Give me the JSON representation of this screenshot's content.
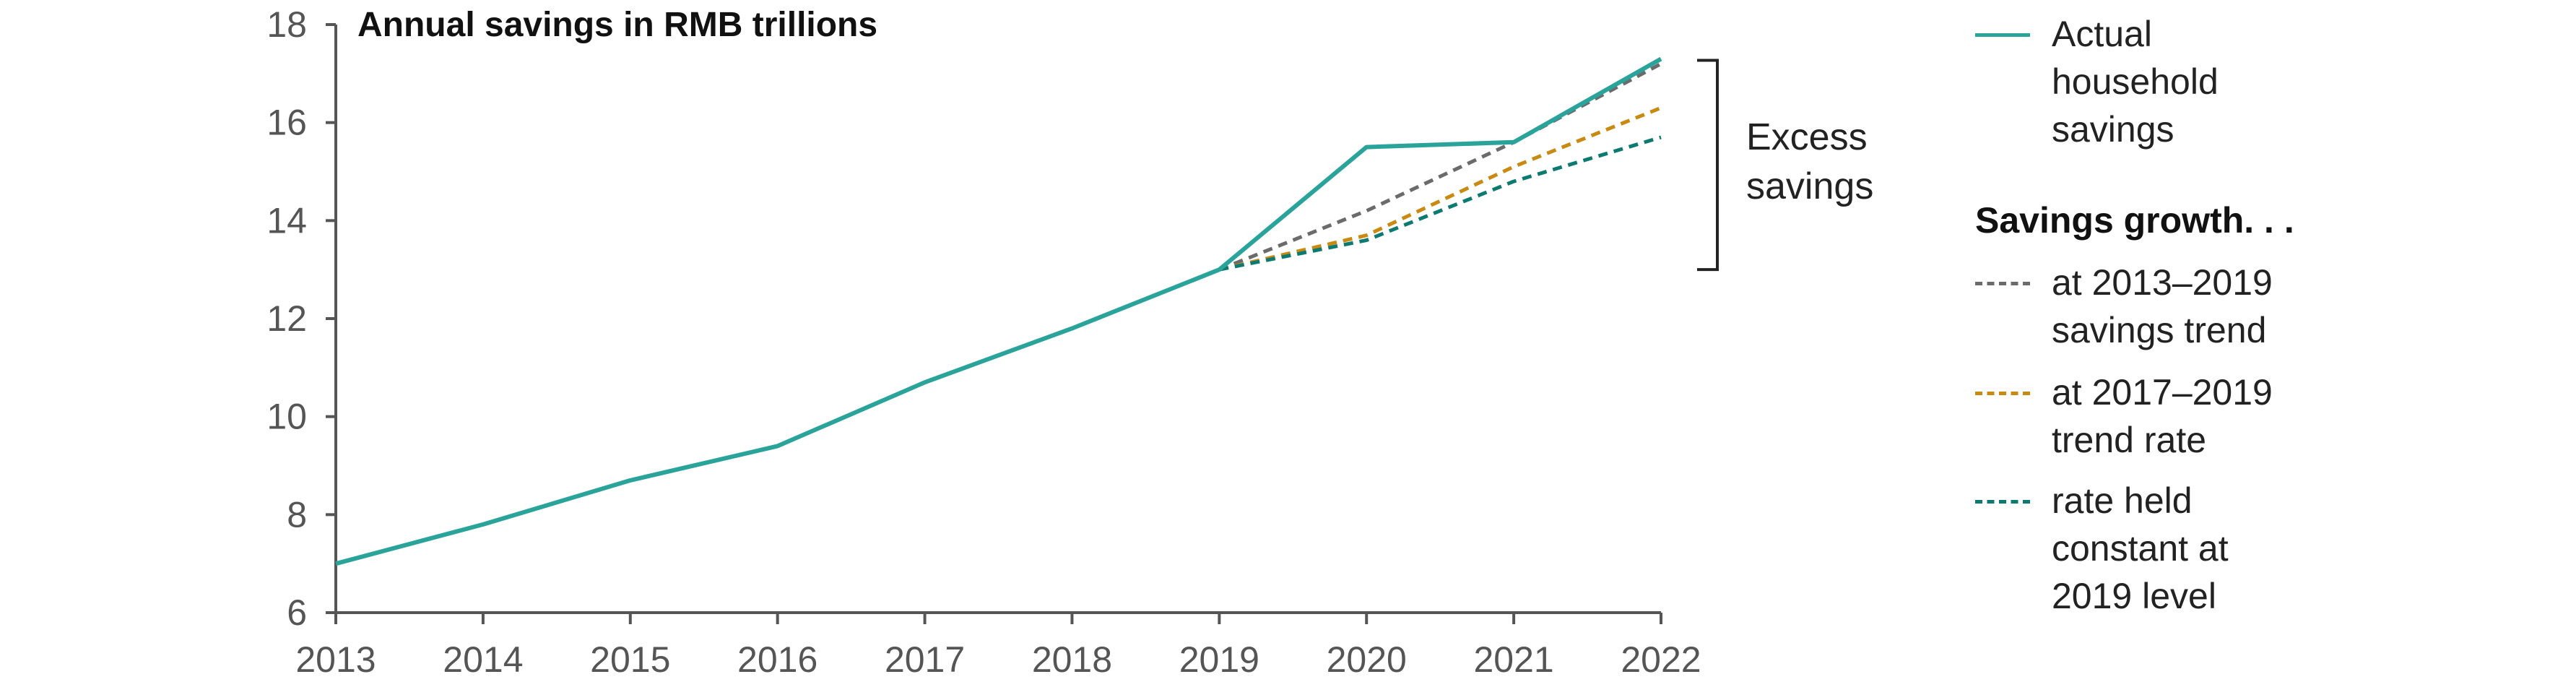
{
  "chart_data": {
    "type": "line",
    "title": "Annual savings in RMB trillions",
    "x": [
      "2013",
      "2014",
      "2015",
      "2016",
      "2017",
      "2018",
      "2019",
      "2020",
      "2021",
      "2022"
    ],
    "ylim": [
      6,
      18
    ],
    "yticks": [
      6,
      8,
      10,
      12,
      14,
      16,
      18
    ],
    "grid": false,
    "legend_position": "right",
    "series": [
      {
        "name": "Actual household savings",
        "color": "#2aa39b",
        "style": "solid",
        "x": [
          "2013",
          "2014",
          "2015",
          "2016",
          "2017",
          "2018",
          "2019",
          "2020",
          "2021",
          "2022"
        ],
        "values": [
          7.0,
          7.8,
          8.7,
          9.4,
          10.7,
          11.8,
          13.0,
          15.5,
          15.6,
          17.3
        ]
      },
      {
        "name": "at 2013–2019 savings trend",
        "color": "#6b6b6b",
        "style": "dashed",
        "x": [
          "2019",
          "2020",
          "2021",
          "2022"
        ],
        "values": [
          13.0,
          14.2,
          15.6,
          17.2
        ]
      },
      {
        "name": "at 2017–2019 trend rate",
        "color": "#c98a12",
        "style": "dashed",
        "x": [
          "2019",
          "2020",
          "2021",
          "2022"
        ],
        "values": [
          13.0,
          13.7,
          15.1,
          16.3
        ]
      },
      {
        "name": "rate held constant at 2019 level",
        "color": "#0d7a72",
        "style": "dashed",
        "x": [
          "2019",
          "2020",
          "2021",
          "2022"
        ],
        "values": [
          13.0,
          13.6,
          14.8,
          15.7
        ]
      }
    ],
    "annotation": {
      "text_lines": [
        "Excess",
        "savings"
      ],
      "range": [
        13.0,
        17.3
      ]
    },
    "legend": {
      "heading": "Savings growth. . .",
      "entries": [
        {
          "lines": [
            "Actual",
            "household",
            "savings"
          ],
          "color": "#2aa39b",
          "style": "solid"
        },
        {
          "lines": [
            "at 2013–2019",
            "savings trend"
          ],
          "color": "#6b6b6b",
          "style": "dashed"
        },
        {
          "lines": [
            "at 2017–2019",
            "trend rate"
          ],
          "color": "#c98a12",
          "style": "dashed"
        },
        {
          "lines": [
            "rate held",
            "constant at",
            "2019 level"
          ],
          "color": "#0d7a72",
          "style": "dashed"
        }
      ]
    }
  }
}
